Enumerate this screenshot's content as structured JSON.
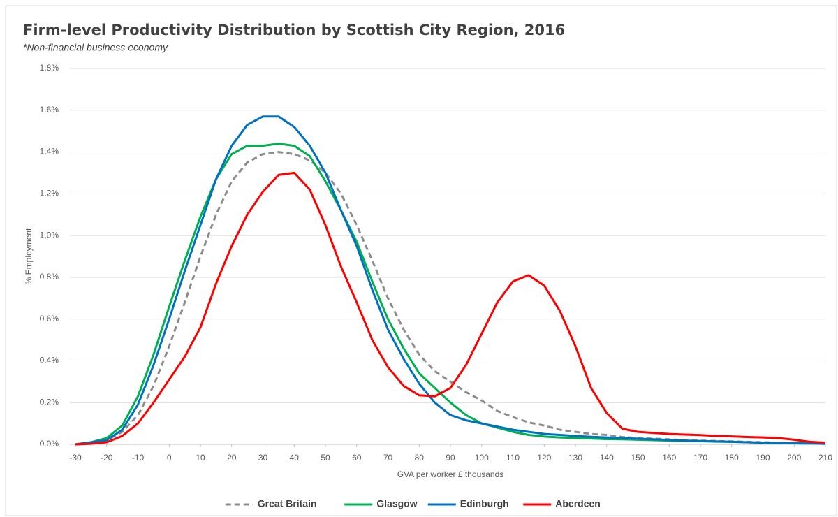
{
  "chart_data": {
    "type": "line",
    "title": "Firm-level Productivity Distribution by Scottish City Region, 2016",
    "subtitle": "*Non-financial business economy",
    "x_label": "GVA per worker £ thousands",
    "y_label": "% Employment",
    "x": [
      -30,
      -25,
      -20,
      -15,
      -10,
      -5,
      0,
      5,
      10,
      15,
      20,
      25,
      30,
      35,
      40,
      45,
      50,
      55,
      60,
      65,
      70,
      75,
      80,
      85,
      90,
      95,
      100,
      105,
      110,
      115,
      120,
      125,
      130,
      135,
      140,
      145,
      150,
      155,
      160,
      165,
      170,
      175,
      180,
      185,
      190,
      195,
      200,
      205,
      210
    ],
    "series": [
      {
        "name": "Great Britain",
        "color": "#8c8c8c",
        "dashed": true,
        "values": [
          0,
          0.005,
          0.02,
          0.06,
          0.14,
          0.28,
          0.47,
          0.68,
          0.9,
          1.1,
          1.26,
          1.35,
          1.39,
          1.4,
          1.39,
          1.36,
          1.3,
          1.2,
          1.05,
          0.88,
          0.7,
          0.55,
          0.43,
          0.35,
          0.3,
          0.25,
          0.21,
          0.16,
          0.13,
          0.105,
          0.09,
          0.07,
          0.06,
          0.05,
          0.045,
          0.035,
          0.03,
          0.027,
          0.024,
          0.02,
          0.018,
          0.016,
          0.014,
          0.012,
          0.01,
          0.008,
          0.006,
          0.004,
          0.003
        ]
      },
      {
        "name": "Glasgow",
        "color": "#00b050",
        "values": [
          0,
          0.01,
          0.03,
          0.09,
          0.23,
          0.43,
          0.66,
          0.88,
          1.09,
          1.27,
          1.39,
          1.43,
          1.43,
          1.44,
          1.43,
          1.38,
          1.26,
          1.12,
          0.97,
          0.78,
          0.6,
          0.46,
          0.34,
          0.27,
          0.2,
          0.14,
          0.1,
          0.08,
          0.06,
          0.045,
          0.037,
          0.033,
          0.03,
          0.028,
          0.025,
          0.024,
          0.022,
          0.02,
          0.018,
          0.016,
          0.015,
          0.013,
          0.012,
          0.01,
          0.008,
          0.006,
          0.005,
          0.004,
          0.003
        ]
      },
      {
        "name": "Edinburgh",
        "color": "#0070c0",
        "values": [
          0,
          0.01,
          0.02,
          0.07,
          0.19,
          0.38,
          0.6,
          0.83,
          1.05,
          1.27,
          1.43,
          1.53,
          1.57,
          1.57,
          1.52,
          1.43,
          1.3,
          1.12,
          0.95,
          0.74,
          0.55,
          0.41,
          0.29,
          0.2,
          0.14,
          0.115,
          0.1,
          0.085,
          0.07,
          0.06,
          0.05,
          0.045,
          0.04,
          0.036,
          0.033,
          0.03,
          0.027,
          0.024,
          0.021,
          0.018,
          0.016,
          0.014,
          0.012,
          0.01,
          0.008,
          0.006,
          0.005,
          0.004,
          0.003
        ]
      },
      {
        "name": "Aberdeen",
        "color": "#ff0000",
        "values": [
          0,
          0.003,
          0.01,
          0.04,
          0.1,
          0.2,
          0.31,
          0.42,
          0.56,
          0.77,
          0.95,
          1.1,
          1.21,
          1.29,
          1.3,
          1.22,
          1.05,
          0.85,
          0.68,
          0.5,
          0.37,
          0.28,
          0.235,
          0.23,
          0.27,
          0.38,
          0.53,
          0.68,
          0.78,
          0.81,
          0.76,
          0.64,
          0.47,
          0.27,
          0.15,
          0.075,
          0.06,
          0.055,
          0.05,
          0.047,
          0.044,
          0.04,
          0.038,
          0.035,
          0.033,
          0.03,
          0.022,
          0.012,
          0.008
        ]
      }
    ],
    "xlim": [
      -30,
      210
    ],
    "xticks": [
      -30,
      -20,
      -10,
      0,
      10,
      20,
      30,
      40,
      50,
      60,
      70,
      80,
      90,
      100,
      110,
      120,
      130,
      140,
      150,
      160,
      170,
      180,
      190,
      200,
      210
    ],
    "ylim": [
      0,
      1.8
    ],
    "yticks": [
      {
        "value": 0,
        "label": "0.0%"
      },
      {
        "value": 0.2,
        "label": "0.2%"
      },
      {
        "value": 0.4,
        "label": "0.4%"
      },
      {
        "value": 0.6,
        "label": "0.6%"
      },
      {
        "value": 0.8,
        "label": "0.8%"
      },
      {
        "value": 1.0,
        "label": "1.0%"
      },
      {
        "value": 1.2,
        "label": "1.2%"
      },
      {
        "value": 1.4,
        "label": "1.4%"
      },
      {
        "value": 1.6,
        "label": "1.6%"
      },
      {
        "value": 1.8,
        "label": "1.8%"
      }
    ],
    "grid": true,
    "legend": "bottom"
  }
}
